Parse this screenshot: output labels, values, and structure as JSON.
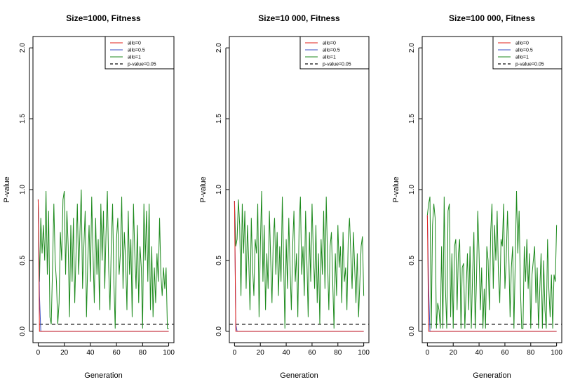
{
  "colors": {
    "allo0": "#e0201b",
    "allo05": "#3b4fc4",
    "allo1": "#1d8a1d",
    "pthresh": "#333333"
  },
  "chart_data": [
    {
      "type": "line",
      "title": "Size=1000, Fitness",
      "xlabel": "Generation",
      "ylabel": "P-value",
      "xlim": [
        0,
        100
      ],
      "ylim": [
        0,
        2
      ],
      "xticks": [
        "0",
        "20",
        "40",
        "60",
        "80",
        "100"
      ],
      "yticks": [
        "0.0",
        "0.5",
        "1.0",
        "1.5",
        "2.0"
      ],
      "legend_position": "top-right",
      "legend": [
        "allo=0",
        "allo=0.5",
        "allo=1",
        "p-value=0.05"
      ],
      "threshold": 0.05,
      "series": [
        {
          "name": "allo=0",
          "x": [
            0,
            1,
            100
          ],
          "y": [
            0.93,
            0,
            0
          ]
        },
        {
          "name": "allo=0.5",
          "x": [
            0,
            1,
            2,
            100
          ],
          "y": [
            0.93,
            0.25,
            0,
            0
          ]
        },
        {
          "name": "allo=1",
          "x": [
            0,
            1,
            2,
            3,
            4,
            5,
            6,
            7,
            8,
            9,
            10,
            11,
            12,
            13,
            14,
            15,
            16,
            17,
            18,
            19,
            20,
            21,
            22,
            23,
            24,
            25,
            26,
            27,
            28,
            29,
            30,
            31,
            32,
            33,
            34,
            35,
            36,
            37,
            38,
            39,
            40,
            41,
            42,
            43,
            44,
            45,
            46,
            47,
            48,
            49,
            50,
            51,
            52,
            53,
            54,
            55,
            56,
            57,
            58,
            59,
            60,
            61,
            62,
            63,
            64,
            65,
            66,
            67,
            68,
            69,
            70,
            71,
            72,
            73,
            74,
            75,
            76,
            77,
            78,
            79,
            80,
            81,
            82,
            83,
            84,
            85,
            86,
            87,
            88,
            89,
            90,
            91,
            92,
            93,
            94,
            95,
            96,
            97,
            98,
            99,
            100
          ],
          "y": [
            0.93,
            0.35,
            0.8,
            0.55,
            0.75,
            0.5,
            0.99,
            0.4,
            0.85,
            0.1,
            0.05,
            0.45,
            0.9,
            0.5,
            0.35,
            0.05,
            0.2,
            0.7,
            0.5,
            0.93,
            0.99,
            0.4,
            0.85,
            0.6,
            0.1,
            0.75,
            0.35,
            0.8,
            0.2,
            0.55,
            0.9,
            0.4,
            0.7,
            1.0,
            0.3,
            0.6,
            0.85,
            0.1,
            0.5,
            0.75,
            0.35,
            0.95,
            0.55,
            0.2,
            0.8,
            0.4,
            0.65,
            0.15,
            0.9,
            0.5,
            0.85,
            0.3,
            0.7,
            0.99,
            0.45,
            0.15,
            0.6,
            0.9,
            0.35,
            0.02,
            0.65,
            0.8,
            0.4,
            0.55,
            0.95,
            0.3,
            0.7,
            0.5,
            0.15,
            0.85,
            0.4,
            0.65,
            0.1,
            0.9,
            0.55,
            0.3,
            0.75,
            0.2,
            0.6,
            0.45,
            0.02,
            0.9,
            0.5,
            0.85,
            0.35,
            0.9,
            0.15,
            0.6,
            0.1,
            0.45,
            0.2,
            0.55,
            0.35,
            0.8,
            0.4,
            0.25,
            0.45,
            0.3,
            0.45,
            0.02,
            0.02
          ]
        }
      ]
    },
    {
      "type": "line",
      "title": "Size=10 000, Fitness",
      "xlabel": "Generation",
      "ylabel": "P-value",
      "xlim": [
        0,
        100
      ],
      "ylim": [
        0,
        2
      ],
      "xticks": [
        "0",
        "20",
        "40",
        "60",
        "80",
        "100"
      ],
      "yticks": [
        "0.0",
        "0.5",
        "1.0",
        "1.5",
        "2.0"
      ],
      "legend_position": "top-right",
      "legend": [
        "allo=0",
        "allo=0.5",
        "allo=1",
        "p-value=0.05"
      ],
      "threshold": 0.05,
      "series": [
        {
          "name": "allo=0",
          "x": [
            0,
            1,
            100
          ],
          "y": [
            0.92,
            0,
            0
          ]
        },
        {
          "name": "allo=0.5",
          "x": [
            0,
            1,
            2,
            100
          ],
          "y": [
            0.92,
            0.05,
            0,
            0
          ]
        },
        {
          "name": "allo=1",
          "x": [
            0,
            1,
            2,
            3,
            4,
            5,
            6,
            7,
            8,
            9,
            10,
            11,
            12,
            13,
            14,
            15,
            16,
            17,
            18,
            19,
            20,
            21,
            22,
            23,
            24,
            25,
            26,
            27,
            28,
            29,
            30,
            31,
            32,
            33,
            34,
            35,
            36,
            37,
            38,
            39,
            40,
            41,
            42,
            43,
            44,
            45,
            46,
            47,
            48,
            49,
            50,
            51,
            52,
            53,
            54,
            55,
            56,
            57,
            58,
            59,
            60,
            61,
            62,
            63,
            64,
            65,
            66,
            67,
            68,
            69,
            70,
            71,
            72,
            73,
            74,
            75,
            76,
            77,
            78,
            79,
            80,
            81,
            82,
            83,
            84,
            85,
            86,
            87,
            88,
            89,
            90,
            91,
            92,
            93,
            94,
            95,
            96,
            97,
            98,
            99,
            100
          ],
          "y": [
            0.92,
            0.6,
            0.65,
            0.93,
            0.75,
            0.25,
            0.9,
            0.55,
            0.85,
            0.3,
            0.75,
            0.5,
            0.15,
            0.8,
            0.45,
            0.25,
            0.65,
            0.55,
            0.9,
            0.1,
            0.6,
            0.99,
            0.35,
            0.75,
            0.15,
            0.55,
            0.3,
            0.85,
            0.5,
            0.2,
            0.65,
            0.8,
            0.4,
            0.7,
            0.25,
            0.6,
            0.35,
            0.95,
            0.5,
            0.02,
            0.65,
            0.3,
            0.8,
            0.45,
            0.15,
            0.6,
            0.85,
            0.35,
            0.55,
            0.1,
            0.75,
            0.95,
            0.4,
            0.6,
            0.25,
            0.85,
            0.5,
            0.1,
            0.7,
            0.35,
            0.9,
            0.55,
            0.3,
            0.75,
            0.2,
            0.55,
            0.05,
            0.65,
            0.4,
            0.85,
            0.3,
            0.95,
            0.5,
            0.15,
            0.6,
            0.7,
            0.35,
            0.02,
            0.55,
            0.25,
            0.75,
            0.45,
            0.6,
            0.2,
            0.7,
            0.35,
            0.45,
            0.15,
            0.65,
            0.8,
            0.55,
            0.3,
            0.7,
            0.45,
            0.2,
            0.55,
            0.1,
            0.35,
            0.6,
            0.67,
            0.25
          ]
        }
      ]
    },
    {
      "type": "line",
      "title": "Size=100 000, Fitness",
      "xlabel": "Generation",
      "ylabel": "P-value",
      "xlim": [
        0,
        100
      ],
      "ylim": [
        0,
        2
      ],
      "xticks": [
        "0",
        "20",
        "40",
        "60",
        "80",
        "100"
      ],
      "yticks": [
        "0.0",
        "0.5",
        "1.0",
        "1.5",
        "2.0"
      ],
      "legend_position": "top-right",
      "legend": [
        "allo=0",
        "allo=0.5",
        "allo=1",
        "p-value=0.05"
      ],
      "threshold": 0.05,
      "series": [
        {
          "name": "allo=0",
          "x": [
            0,
            1,
            100
          ],
          "y": [
            0.82,
            0,
            0
          ]
        },
        {
          "name": "allo=0.5",
          "x": [
            0,
            1,
            2,
            100
          ],
          "y": [
            0.82,
            0.3,
            0,
            0
          ]
        },
        {
          "name": "allo=1",
          "x": [
            0,
            1,
            2,
            3,
            4,
            5,
            6,
            7,
            8,
            9,
            10,
            11,
            12,
            13,
            14,
            15,
            16,
            17,
            18,
            19,
            20,
            21,
            22,
            23,
            24,
            25,
            26,
            27,
            28,
            29,
            30,
            31,
            32,
            33,
            34,
            35,
            36,
            37,
            38,
            39,
            40,
            41,
            42,
            43,
            44,
            45,
            46,
            47,
            48,
            49,
            50,
            51,
            52,
            53,
            54,
            55,
            56,
            57,
            58,
            59,
            60,
            61,
            62,
            63,
            64,
            65,
            66,
            67,
            68,
            69,
            70,
            71,
            72,
            73,
            74,
            75,
            76,
            77,
            78,
            79,
            80,
            81,
            82,
            83,
            84,
            85,
            86,
            87,
            88,
            89,
            90,
            91,
            92,
            93,
            94,
            95,
            96,
            97,
            98,
            99,
            100
          ],
          "y": [
            0.82,
            0.9,
            0.95,
            0.02,
            0.75,
            0.9,
            0.8,
            0.02,
            0.2,
            0.15,
            0.02,
            0.6,
            0.02,
            0.95,
            0.3,
            0.02,
            0.85,
            0.9,
            0.1,
            0.55,
            0.02,
            0.6,
            0.65,
            0.15,
            0.55,
            0.65,
            0.02,
            0.45,
            0.48,
            0.02,
            0.3,
            0.55,
            0.15,
            0.6,
            0.02,
            0.4,
            0.7,
            0.02,
            0.35,
            0.85,
            0.55,
            0.15,
            0.45,
            0.02,
            0.3,
            0.02,
            0.6,
            0.5,
            0.15,
            0.7,
            0.9,
            0.3,
            0.75,
            0.5,
            0.85,
            0.4,
            0.2,
            0.65,
            0.6,
            0.9,
            0.3,
            0.5,
            0.85,
            0.55,
            0.1,
            0.45,
            0.6,
            0.02,
            0.5,
            0.99,
            0.55,
            0.85,
            0.3,
            0.02,
            0.02,
            0.6,
            0.35,
            0.65,
            0.3,
            0.55,
            0.02,
            0.4,
            0.5,
            0.6,
            0.2,
            0.45,
            0.02,
            0.3,
            0.55,
            0.02,
            0.5,
            0.15,
            0.02,
            0.65,
            0.3,
            0.1,
            0.4,
            0.02,
            0.4,
            0.35,
            0.75
          ]
        }
      ]
    }
  ]
}
